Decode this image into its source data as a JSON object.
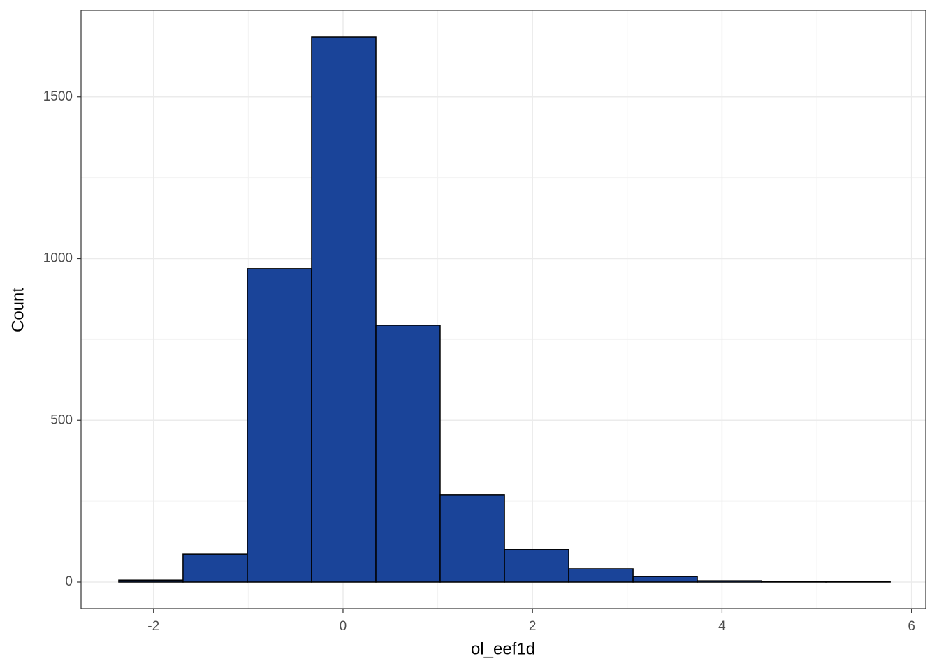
{
  "chart_data": {
    "type": "histogram",
    "x_label": "ol_eef1d",
    "y_label": "Count",
    "bins": [
      -2.367,
      -1.689,
      -1.01,
      -0.332,
      0.347,
      1.025,
      1.704,
      2.382,
      3.061,
      3.739,
      4.418,
      5.096,
      5.775
    ],
    "counts": [
      6,
      86,
      969,
      1685,
      794,
      270,
      101,
      41,
      17,
      4,
      1,
      1
    ],
    "color": "#1a4499",
    "edge_color": "#000000",
    "xlim": [
      -2.765,
      6.15
    ],
    "xticks": [
      -2,
      0,
      2,
      4,
      6
    ],
    "ylim": [
      -82,
      1767
    ],
    "yticks": [
      0,
      500,
      1000,
      1500
    ],
    "grid": true
  }
}
